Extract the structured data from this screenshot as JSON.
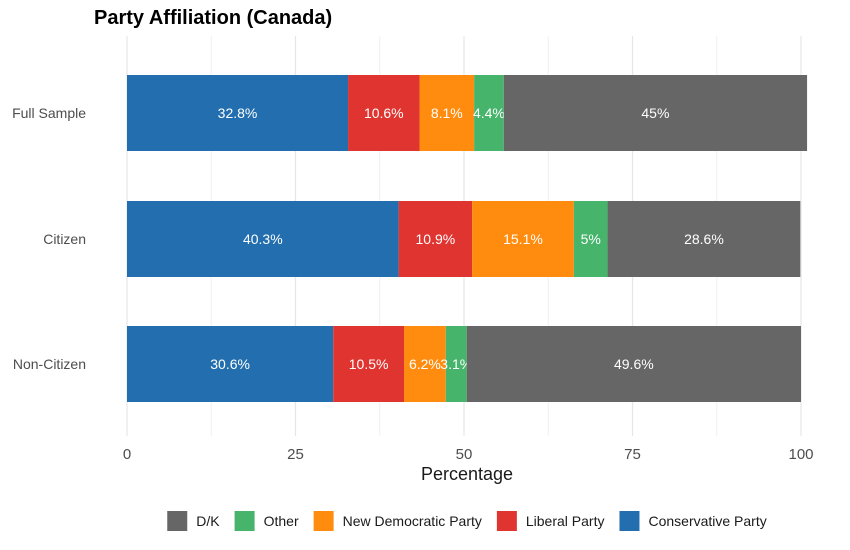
{
  "chart_data": {
    "type": "bar",
    "orientation": "horizontal",
    "stacked": true,
    "title": "Party Affiliation (Canada)",
    "xlabel": "Percentage",
    "ylabel": "",
    "xlim": [
      0,
      100
    ],
    "x_ticks": [
      0,
      25,
      50,
      75,
      100
    ],
    "grid": true,
    "legend_position": "bottom",
    "categories": [
      "Full Sample",
      "Citizen",
      "Non-Citizen"
    ],
    "series": [
      {
        "name": "Conservative Party",
        "color": "#226EAE",
        "values": [
          32.8,
          40.3,
          30.6
        ],
        "labels": [
          "32.8%",
          "40.3%",
          "30.6%"
        ]
      },
      {
        "name": "Liberal Party",
        "color": "#E03431",
        "values": [
          10.6,
          10.9,
          10.5
        ],
        "labels": [
          "10.6%",
          "10.9%",
          "10.5%"
        ]
      },
      {
        "name": "New Democratic Party",
        "color": "#FF8C0E",
        "values": [
          8.1,
          15.1,
          6.2
        ],
        "labels": [
          "8.1%",
          "15.1%",
          "6.2%"
        ]
      },
      {
        "name": "Other",
        "color": "#46B56B",
        "values": [
          4.4,
          5.0,
          3.1
        ],
        "labels": [
          "4.4%",
          "5%",
          "3.1%"
        ]
      },
      {
        "name": "D/K",
        "color": "#666666",
        "values": [
          45.0,
          28.6,
          49.6
        ],
        "labels": [
          "45%",
          "28.6%",
          "49.6%"
        ]
      }
    ],
    "legend_order": [
      "D/K",
      "Other",
      "New Democratic Party",
      "Liberal Party",
      "Conservative Party"
    ]
  }
}
